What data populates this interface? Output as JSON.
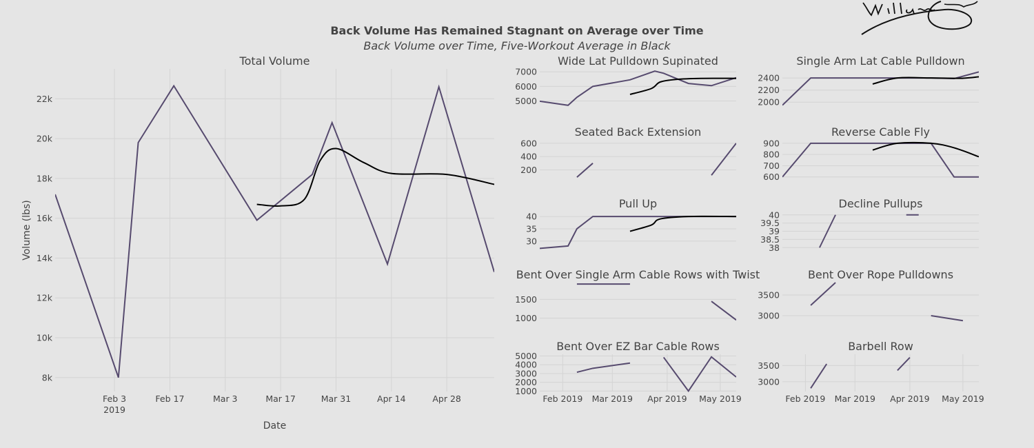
{
  "title": "Back Volume Has Remained Stagnant on Average over Time",
  "subtitle": "Back Volume over Time, Five-Workout Average in Black",
  "colors": {
    "volume": "#564a6e",
    "average": "#000000",
    "background": "#e5e5e5",
    "grid": "#d4d4d4"
  },
  "chart_data": [
    {
      "id": "total",
      "type": "line",
      "title": "Total Volume",
      "xlabel": "Date",
      "ylabel": "Volume (lbs)",
      "xlim": [
        "2019-01-19",
        "2019-05-10"
      ],
      "ylim": [
        7300,
        23500
      ],
      "xticks": [
        {
          "date": "2019-02-03",
          "label": "Feb 3",
          "sub": "2019"
        },
        {
          "date": "2019-02-17",
          "label": "Feb 17"
        },
        {
          "date": "2019-03-03",
          "label": "Mar 3"
        },
        {
          "date": "2019-03-17",
          "label": "Mar 17"
        },
        {
          "date": "2019-03-31",
          "label": "Mar 31"
        },
        {
          "date": "2019-04-14",
          "label": "Apr 14"
        },
        {
          "date": "2019-04-28",
          "label": "Apr 28"
        }
      ],
      "yticks": [
        {
          "v": 8000,
          "label": "8k"
        },
        {
          "v": 10000,
          "label": "10k"
        },
        {
          "v": 12000,
          "label": "12k"
        },
        {
          "v": 14000,
          "label": "14k"
        },
        {
          "v": 16000,
          "label": "16k"
        },
        {
          "v": 18000,
          "label": "18k"
        },
        {
          "v": 20000,
          "label": "20k"
        },
        {
          "v": 22000,
          "label": "22k"
        }
      ],
      "series": [
        {
          "role": "volume",
          "segments": [
            [
              [
                "2019-01-19",
                17200
              ],
              [
                "2019-02-04",
                8000
              ],
              [
                "2019-02-09",
                19800
              ],
              [
                "2019-02-18",
                22650
              ],
              [
                "2019-03-11",
                15900
              ],
              [
                "2019-03-25",
                18200
              ],
              [
                "2019-03-30",
                20800
              ],
              [
                "2019-04-13",
                13700
              ],
              [
                "2019-04-26",
                22600
              ],
              [
                "2019-05-10",
                13300
              ]
            ]
          ]
        },
        {
          "role": "average",
          "smooth": true,
          "segments": [
            [
              [
                "2019-03-11",
                16700
              ],
              [
                "2019-03-17",
                16620
              ],
              [
                "2019-03-23",
                16950
              ],
              [
                "2019-03-27",
                18900
              ],
              [
                "2019-03-31",
                19500
              ],
              [
                "2019-04-07",
                18800
              ],
              [
                "2019-04-14",
                18250
              ],
              [
                "2019-04-28",
                18200
              ],
              [
                "2019-05-10",
                17700
              ]
            ]
          ]
        }
      ]
    },
    {
      "id": "wide-lat",
      "type": "line",
      "title": "Wide Lat Pulldown Supinated",
      "xlim": [
        "2019-01-19",
        "2019-05-10"
      ],
      "ylim": [
        4500,
        7200
      ],
      "yticks": [
        {
          "v": 5000,
          "label": "5000"
        },
        {
          "v": 6000,
          "label": "6000"
        },
        {
          "v": 7000,
          "label": "7000"
        }
      ],
      "series": [
        {
          "role": "volume",
          "segments": [
            [
              [
                "2019-01-19",
                4980
              ],
              [
                "2019-02-04",
                4700
              ],
              [
                "2019-02-09",
                5250
              ],
              [
                "2019-02-18",
                6000
              ],
              [
                "2019-03-11",
                6450
              ],
              [
                "2019-03-25",
                7050
              ],
              [
                "2019-03-30",
                6900
              ],
              [
                "2019-04-13",
                6200
              ],
              [
                "2019-04-26",
                6050
              ],
              [
                "2019-05-10",
                6600
              ]
            ]
          ]
        },
        {
          "role": "average",
          "smooth": true,
          "segments": [
            [
              [
                "2019-03-11",
                5450
              ],
              [
                "2019-03-23",
                5850
              ],
              [
                "2019-03-28",
                6300
              ],
              [
                "2019-04-06",
                6480
              ],
              [
                "2019-04-20",
                6550
              ],
              [
                "2019-05-10",
                6550
              ]
            ]
          ]
        }
      ]
    },
    {
      "id": "single-arm-lat",
      "type": "line",
      "title": "Single Arm Lat Cable Pulldown",
      "xlim": [
        "2019-01-19",
        "2019-05-10"
      ],
      "ylim": [
        1900,
        2550
      ],
      "yticks": [
        {
          "v": 2000,
          "label": "2000"
        },
        {
          "v": 2200,
          "label": "2200"
        },
        {
          "v": 2400,
          "label": "2400"
        }
      ],
      "series": [
        {
          "role": "volume",
          "segments": [
            [
              [
                "2019-01-19",
                1950
              ],
              [
                "2019-02-04",
                2400
              ],
              [
                "2019-02-18",
                2400
              ],
              [
                "2019-03-11",
                2400
              ],
              [
                "2019-03-25",
                2400
              ],
              [
                "2019-04-13",
                2400
              ],
              [
                "2019-04-26",
                2390
              ],
              [
                "2019-05-10",
                2500
              ]
            ]
          ]
        },
        {
          "role": "average",
          "smooth": true,
          "segments": [
            [
              [
                "2019-03-11",
                2300
              ],
              [
                "2019-03-25",
                2400
              ],
              [
                "2019-04-13",
                2400
              ],
              [
                "2019-04-30",
                2395
              ],
              [
                "2019-05-10",
                2420
              ]
            ]
          ]
        }
      ]
    },
    {
      "id": "seated-back",
      "type": "line",
      "title": "Seated Back Extension",
      "xlim": [
        "2019-01-19",
        "2019-05-10"
      ],
      "ylim": [
        60,
        650
      ],
      "yticks": [
        {
          "v": 200,
          "label": "200"
        },
        {
          "v": 400,
          "label": "400"
        },
        {
          "v": 600,
          "label": "600"
        }
      ],
      "series": [
        {
          "role": "volume",
          "segments": [
            [
              [
                "2019-02-09",
                90
              ],
              [
                "2019-02-18",
                300
              ]
            ],
            [
              [
                "2019-04-26",
                120
              ],
              [
                "2019-05-10",
                600
              ]
            ]
          ]
        }
      ]
    },
    {
      "id": "reverse-fly",
      "type": "line",
      "title": "Reverse Cable Fly",
      "xlim": [
        "2019-01-19",
        "2019-05-10"
      ],
      "ylim": [
        580,
        930
      ],
      "yticks": [
        {
          "v": 600,
          "label": "600"
        },
        {
          "v": 700,
          "label": "700"
        },
        {
          "v": 800,
          "label": "800"
        },
        {
          "v": 900,
          "label": "900"
        }
      ],
      "series": [
        {
          "role": "volume",
          "segments": [
            [
              [
                "2019-01-19",
                600
              ],
              [
                "2019-02-04",
                900
              ],
              [
                "2019-02-18",
                900
              ],
              [
                "2019-03-11",
                900
              ],
              [
                "2019-03-25",
                900
              ],
              [
                "2019-04-13",
                900
              ],
              [
                "2019-04-26",
                600
              ],
              [
                "2019-05-10",
                600
              ]
            ]
          ]
        },
        {
          "role": "average",
          "smooth": true,
          "segments": [
            [
              [
                "2019-03-11",
                840
              ],
              [
                "2019-03-25",
                900
              ],
              [
                "2019-04-13",
                900
              ],
              [
                "2019-04-26",
                860
              ],
              [
                "2019-05-10",
                780
              ]
            ]
          ]
        }
      ]
    },
    {
      "id": "pull-up",
      "type": "line",
      "title": "Pull Up",
      "xlim": [
        "2019-01-19",
        "2019-05-10"
      ],
      "ylim": [
        26,
        42
      ],
      "yticks": [
        {
          "v": 30,
          "label": "30"
        },
        {
          "v": 35,
          "label": "35"
        },
        {
          "v": 40,
          "label": "40"
        }
      ],
      "series": [
        {
          "role": "volume",
          "segments": [
            [
              [
                "2019-01-19",
                27
              ],
              [
                "2019-02-04",
                28
              ],
              [
                "2019-02-09",
                35
              ],
              [
                "2019-02-18",
                40
              ],
              [
                "2019-03-11",
                40
              ],
              [
                "2019-03-25",
                40
              ],
              [
                "2019-04-13",
                40
              ],
              [
                "2019-05-10",
                40
              ]
            ]
          ]
        },
        {
          "role": "average",
          "smooth": true,
          "segments": [
            [
              [
                "2019-03-11",
                34
              ],
              [
                "2019-03-23",
                36.5
              ],
              [
                "2019-03-28",
                39
              ],
              [
                "2019-04-13",
                40
              ],
              [
                "2019-05-10",
                40
              ]
            ]
          ]
        }
      ]
    },
    {
      "id": "decline-pullups",
      "type": "line",
      "title": "Decline Pullups",
      "xlim": [
        "2019-01-19",
        "2019-05-10"
      ],
      "ylim": [
        37.8,
        40.2
      ],
      "yticks": [
        {
          "v": 38,
          "label": "38"
        },
        {
          "v": 38.5,
          "label": "38.5"
        },
        {
          "v": 39,
          "label": "39"
        },
        {
          "v": 39.5,
          "label": "39.5"
        },
        {
          "v": 40,
          "label": "40"
        }
      ],
      "series": [
        {
          "role": "volume",
          "segments": [
            [
              [
                "2019-02-09",
                38
              ],
              [
                "2019-02-18",
                40
              ]
            ],
            [
              [
                "2019-03-30",
                40
              ],
              [
                "2019-04-06",
                40
              ]
            ]
          ]
        }
      ]
    },
    {
      "id": "bent-single-arm",
      "type": "line",
      "title": "Bent Over Single Arm Cable Rows with Twist",
      "xlim": [
        "2019-01-19",
        "2019-05-10"
      ],
      "ylim": [
        900,
        1950
      ],
      "yticks": [
        {
          "v": 1000,
          "label": "1000"
        },
        {
          "v": 1500,
          "label": "1500"
        }
      ],
      "series": [
        {
          "role": "volume",
          "segments": [
            [
              [
                "2019-02-09",
                1910
              ],
              [
                "2019-03-11",
                1910
              ]
            ],
            [
              [
                "2019-04-26",
                1450
              ],
              [
                "2019-05-10",
                950
              ]
            ]
          ]
        }
      ]
    },
    {
      "id": "bent-rope",
      "type": "line",
      "title": "Bent Over Rope Pulldowns",
      "xlim": [
        "2019-01-19",
        "2019-05-10"
      ],
      "ylim": [
        2850,
        3800
      ],
      "yticks": [
        {
          "v": 3000,
          "label": "3000"
        },
        {
          "v": 3500,
          "label": "3500"
        }
      ],
      "series": [
        {
          "role": "volume",
          "segments": [
            [
              [
                "2019-02-04",
                3250
              ],
              [
                "2019-02-18",
                3800
              ]
            ],
            [
              [
                "2019-04-13",
                3000
              ],
              [
                "2019-05-01",
                2880
              ]
            ]
          ]
        }
      ]
    },
    {
      "id": "bent-ez",
      "type": "line",
      "title": "Bent Over EZ Bar Cable Rows",
      "xlim": [
        "2019-01-19",
        "2019-05-10"
      ],
      "ylim": [
        950,
        5200
      ],
      "yticks": [
        {
          "v": 1000,
          "label": "1000"
        },
        {
          "v": 2000,
          "label": "2000"
        },
        {
          "v": 3000,
          "label": "3000"
        },
        {
          "v": 4000,
          "label": "4000"
        },
        {
          "v": 5000,
          "label": "5000"
        }
      ],
      "xticks": [
        {
          "date": "2019-02-01",
          "label": "Feb 2019"
        },
        {
          "date": "2019-03-01",
          "label": "Mar 2019"
        },
        {
          "date": "2019-04-01",
          "label": "Apr 2019"
        },
        {
          "date": "2019-05-01",
          "label": "May 2019"
        }
      ],
      "series": [
        {
          "role": "volume",
          "segments": [
            [
              [
                "2019-02-09",
                3150
              ],
              [
                "2019-02-18",
                3600
              ],
              [
                "2019-03-11",
                4200
              ]
            ],
            [
              [
                "2019-03-30",
                4850
              ],
              [
                "2019-04-13",
                1000
              ],
              [
                "2019-04-26",
                4900
              ],
              [
                "2019-05-10",
                2600
              ]
            ]
          ]
        }
      ]
    },
    {
      "id": "barbell-row",
      "type": "line",
      "title": "Barbell Row",
      "xlim": [
        "2019-01-19",
        "2019-05-10"
      ],
      "ylim": [
        2700,
        3850
      ],
      "yticks": [
        {
          "v": 3000,
          "label": "3000"
        },
        {
          "v": 3500,
          "label": "3500"
        }
      ],
      "xticks": [
        {
          "date": "2019-02-01",
          "label": "Feb 2019"
        },
        {
          "date": "2019-03-01",
          "label": "Mar 2019"
        },
        {
          "date": "2019-04-01",
          "label": "Apr 2019"
        },
        {
          "date": "2019-05-01",
          "label": "May 2019"
        }
      ],
      "series": [
        {
          "role": "volume",
          "segments": [
            [
              [
                "2019-02-04",
                2800
              ],
              [
                "2019-02-13",
                3550
              ]
            ],
            [
              [
                "2019-03-25",
                3350
              ],
              [
                "2019-04-01",
                3750
              ]
            ]
          ]
        }
      ]
    }
  ]
}
